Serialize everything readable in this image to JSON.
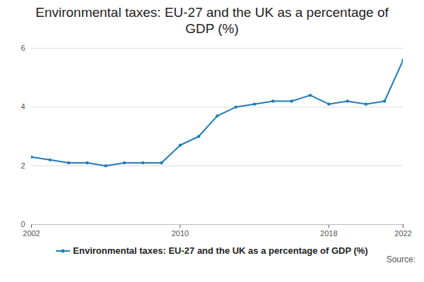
{
  "chart_data": {
    "type": "line",
    "title": "Environmental taxes: EU-27 and the UK as a percentage of GDP (%)",
    "x": [
      2002,
      2003,
      2004,
      2005,
      2006,
      2007,
      2008,
      2009,
      2010,
      2011,
      2012,
      2013,
      2014,
      2015,
      2016,
      2017,
      2018,
      2019,
      2020,
      2021,
      2022
    ],
    "series": [
      {
        "name": "Environmental taxes: EU-27 and the UK as a percentage of GDP (%)",
        "color": "#207cb8",
        "values": [
          2.3,
          2.2,
          2.1,
          2.1,
          2.0,
          2.1,
          2.1,
          2.1,
          2.7,
          3.0,
          3.7,
          4.0,
          4.1,
          4.2,
          4.2,
          4.4,
          4.1,
          4.2,
          4.1,
          4.2,
          5.6
        ]
      }
    ],
    "xlim": [
      2002,
      2022
    ],
    "xticks": [
      2002,
      2010,
      2018,
      2022
    ],
    "ylim": [
      0,
      6
    ],
    "yticks": [
      0,
      2,
      4,
      6
    ],
    "grid": true,
    "legend": "bottom",
    "marker": "circle",
    "source": "Source:"
  }
}
